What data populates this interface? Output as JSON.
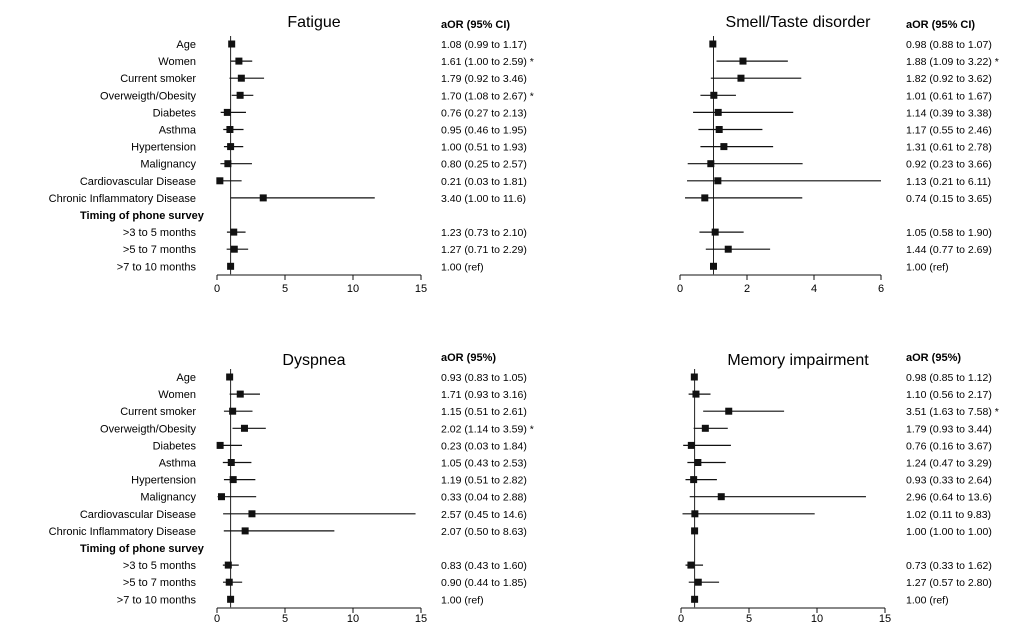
{
  "chart_data": [
    {
      "type": "forest",
      "title": "Fatigue",
      "header": "aOR (95% CI)",
      "xlim": [
        0,
        15
      ],
      "xticks": [
        0,
        5,
        10,
        15
      ],
      "ref_line": 1,
      "rows": [
        {
          "label": "Age",
          "or": 1.08,
          "lo": 0.99,
          "hi": 1.17,
          "text": "1.08 (0.99 to 1.17)"
        },
        {
          "label": "Women",
          "or": 1.61,
          "lo": 1.0,
          "hi": 2.59,
          "text": "1.61 (1.00 to 2.59) *"
        },
        {
          "label": "Current smoker",
          "or": 1.79,
          "lo": 0.92,
          "hi": 3.46,
          "text": "1.79 (0.92 to 3.46)"
        },
        {
          "label": "Overweigth/Obesity",
          "or": 1.7,
          "lo": 1.08,
          "hi": 2.67,
          "text": "1.70 (1.08 to 2.67) *"
        },
        {
          "label": "Diabetes",
          "or": 0.76,
          "lo": 0.27,
          "hi": 2.13,
          "text": "0.76 (0.27 to 2.13)"
        },
        {
          "label": "Asthma",
          "or": 0.95,
          "lo": 0.46,
          "hi": 1.95,
          "text": "0.95 (0.46 to 1.95)"
        },
        {
          "label": "Hypertension",
          "or": 1.0,
          "lo": 0.51,
          "hi": 1.93,
          "text": "1.00 (0.51 to 1.93)"
        },
        {
          "label": "Malignancy",
          "or": 0.8,
          "lo": 0.25,
          "hi": 2.57,
          "text": "0.80 (0.25 to 2.57)"
        },
        {
          "label": "Cardiovascular Disease",
          "or": 0.21,
          "lo": 0.03,
          "hi": 1.81,
          "text": "0.21 (0.03 to 1.81)"
        },
        {
          "label": "Chronic Inflammatory Disease",
          "or": 3.4,
          "lo": 1.0,
          "hi": 11.6,
          "text": "3.40 (1.00 to 11.6)"
        },
        {
          "label": "Timing of phone survey",
          "heading": true
        },
        {
          "label": ">3 to 5 months",
          "or": 1.23,
          "lo": 0.73,
          "hi": 2.1,
          "text": "1.23 (0.73 to 2.10)"
        },
        {
          "label": ">5 to 7 months",
          "or": 1.27,
          "lo": 0.71,
          "hi": 2.29,
          "text": "1.27 (0.71 to 2.29)"
        },
        {
          "label": ">7 to 10 months",
          "or": 1.0,
          "lo": 1.0,
          "hi": 1.0,
          "text": "1.00 (ref)"
        }
      ]
    },
    {
      "type": "forest",
      "title": "Smell/Taste disorder",
      "header": "aOR (95% CI)",
      "xlim": [
        0,
        6
      ],
      "xticks": [
        0,
        2,
        4,
        6
      ],
      "ref_line": 1,
      "rows": [
        {
          "label": "Age",
          "or": 0.98,
          "lo": 0.88,
          "hi": 1.07,
          "text": "0.98 (0.88 to 1.07)"
        },
        {
          "label": "Women",
          "or": 1.88,
          "lo": 1.09,
          "hi": 3.22,
          "text": "1.88 (1.09 to 3.22) *"
        },
        {
          "label": "Current smoker",
          "or": 1.82,
          "lo": 0.92,
          "hi": 3.62,
          "text": "1.82 (0.92 to 3.62)"
        },
        {
          "label": "Overweigth/Obesity",
          "or": 1.01,
          "lo": 0.61,
          "hi": 1.67,
          "text": "1.01 (0.61 to 1.67)"
        },
        {
          "label": "Diabetes",
          "or": 1.14,
          "lo": 0.39,
          "hi": 3.38,
          "text": "1.14 (0.39 to 3.38)"
        },
        {
          "label": "Asthma",
          "or": 1.17,
          "lo": 0.55,
          "hi": 2.46,
          "text": "1.17 (0.55 to 2.46)"
        },
        {
          "label": "Hypertension",
          "or": 1.31,
          "lo": 0.61,
          "hi": 2.78,
          "text": "1.31 (0.61 to 2.78)"
        },
        {
          "label": "Malignancy",
          "or": 0.92,
          "lo": 0.23,
          "hi": 3.66,
          "text": "0.92 (0.23 to 3.66)"
        },
        {
          "label": "Cardiovascular Disease",
          "or": 1.13,
          "lo": 0.21,
          "hi": 6.11,
          "text": "1.13 (0.21 to 6.11)"
        },
        {
          "label": "Chronic Inflammatory Disease",
          "or": 0.74,
          "lo": 0.15,
          "hi": 3.65,
          "text": "0.74 (0.15 to 3.65)"
        },
        {
          "label": "Timing of phone survey",
          "heading": true
        },
        {
          "label": ">3 to 5 months",
          "or": 1.05,
          "lo": 0.58,
          "hi": 1.9,
          "text": "1.05 (0.58 to 1.90)"
        },
        {
          "label": ">5 to 7 months",
          "or": 1.44,
          "lo": 0.77,
          "hi": 2.69,
          "text": "1.44 (0.77 to 2.69)"
        },
        {
          "label": ">7 to 10 months",
          "or": 1.0,
          "lo": 1.0,
          "hi": 1.0,
          "text": "1.00 (ref)"
        }
      ]
    },
    {
      "type": "forest",
      "title": "Dyspnea",
      "header": "aOR (95%)",
      "xlim": [
        0,
        15
      ],
      "xticks": [
        0,
        5,
        10,
        15
      ],
      "ref_line": 1,
      "rows": [
        {
          "label": "Age",
          "or": 0.93,
          "lo": 0.83,
          "hi": 1.05,
          "text": "0.93 (0.83 to 1.05)"
        },
        {
          "label": "Women",
          "or": 1.71,
          "lo": 0.93,
          "hi": 3.16,
          "text": "1.71 (0.93 to 3.16)"
        },
        {
          "label": "Current smoker",
          "or": 1.15,
          "lo": 0.51,
          "hi": 2.61,
          "text": "1.15 (0.51 to 2.61)"
        },
        {
          "label": "Overweigth/Obesity",
          "or": 2.02,
          "lo": 1.14,
          "hi": 3.59,
          "text": "2.02 (1.14 to 3.59) *"
        },
        {
          "label": "Diabetes",
          "or": 0.23,
          "lo": 0.03,
          "hi": 1.84,
          "text": "0.23 (0.03 to 1.84)"
        },
        {
          "label": "Asthma",
          "or": 1.05,
          "lo": 0.43,
          "hi": 2.53,
          "text": "1.05 (0.43 to 2.53)"
        },
        {
          "label": "Hypertension",
          "or": 1.19,
          "lo": 0.51,
          "hi": 2.82,
          "text": "1.19 (0.51 to 2.82)"
        },
        {
          "label": "Malignancy",
          "or": 0.33,
          "lo": 0.04,
          "hi": 2.88,
          "text": "0.33 (0.04 to 2.88)"
        },
        {
          "label": "Cardiovascular Disease",
          "or": 2.57,
          "lo": 0.45,
          "hi": 14.6,
          "text": "2.57 (0.45 to 14.6)"
        },
        {
          "label": "Chronic Inflammatory Disease",
          "or": 2.07,
          "lo": 0.5,
          "hi": 8.63,
          "text": "2.07 (0.50 to 8.63)"
        },
        {
          "label": "Timing of phone survey",
          "heading": true
        },
        {
          "label": ">3 to 5 months",
          "or": 0.83,
          "lo": 0.43,
          "hi": 1.6,
          "text": "0.83 (0.43 to 1.60)"
        },
        {
          "label": ">5 to 7 months",
          "or": 0.9,
          "lo": 0.44,
          "hi": 1.85,
          "text": "0.90 (0.44 to 1.85)"
        },
        {
          "label": ">7 to 10 months",
          "or": 1.0,
          "lo": 1.0,
          "hi": 1.0,
          "text": "1.00 (ref)"
        }
      ]
    },
    {
      "type": "forest",
      "title": "Memory impairment",
      "header": "aOR (95%)",
      "xlim": [
        0,
        15
      ],
      "xticks": [
        0,
        5,
        10,
        15
      ],
      "ref_line": 1,
      "rows": [
        {
          "label": "Age",
          "or": 0.98,
          "lo": 0.85,
          "hi": 1.12,
          "text": "0.98 (0.85 to 1.12)"
        },
        {
          "label": "Women",
          "or": 1.1,
          "lo": 0.56,
          "hi": 2.17,
          "text": "1.10 (0.56 to 2.17)"
        },
        {
          "label": "Current smoker",
          "or": 3.51,
          "lo": 1.63,
          "hi": 7.58,
          "text": "3.51 (1.63 to 7.58) *"
        },
        {
          "label": "Overweigth/Obesity",
          "or": 1.79,
          "lo": 0.93,
          "hi": 3.44,
          "text": "1.79 (0.93 to 3.44)"
        },
        {
          "label": "Diabetes",
          "or": 0.76,
          "lo": 0.16,
          "hi": 3.67,
          "text": "0.76 (0.16 to 3.67)"
        },
        {
          "label": "Asthma",
          "or": 1.24,
          "lo": 0.47,
          "hi": 3.29,
          "text": "1.24 (0.47 to 3.29)"
        },
        {
          "label": "Hypertension",
          "or": 0.93,
          "lo": 0.33,
          "hi": 2.64,
          "text": "0.93 (0.33 to 2.64)"
        },
        {
          "label": "Malignancy",
          "or": 2.96,
          "lo": 0.64,
          "hi": 13.6,
          "text": "2.96 (0.64 to 13.6)"
        },
        {
          "label": "Cardiovascular Disease",
          "or": 1.02,
          "lo": 0.11,
          "hi": 9.83,
          "text": "1.02 (0.11 to 9.83)"
        },
        {
          "label": "Chronic Inflammatory Disease",
          "or": 1.0,
          "lo": 1.0,
          "hi": 1.0,
          "text": "1.00 (1.00 to 1.00)"
        },
        {
          "label": "Timing of phone survey",
          "heading": true
        },
        {
          "label": ">3 to 5 months",
          "or": 0.73,
          "lo": 0.33,
          "hi": 1.62,
          "text": "0.73 (0.33 to 1.62)"
        },
        {
          "label": ">5 to 7 months",
          "or": 1.27,
          "lo": 0.57,
          "hi": 2.8,
          "text": "1.27 (0.57 to 2.80)"
        },
        {
          "label": ">7 to 10 months",
          "or": 1.0,
          "lo": 1.0,
          "hi": 1.0,
          "text": "1.00 (ref)"
        }
      ]
    }
  ]
}
